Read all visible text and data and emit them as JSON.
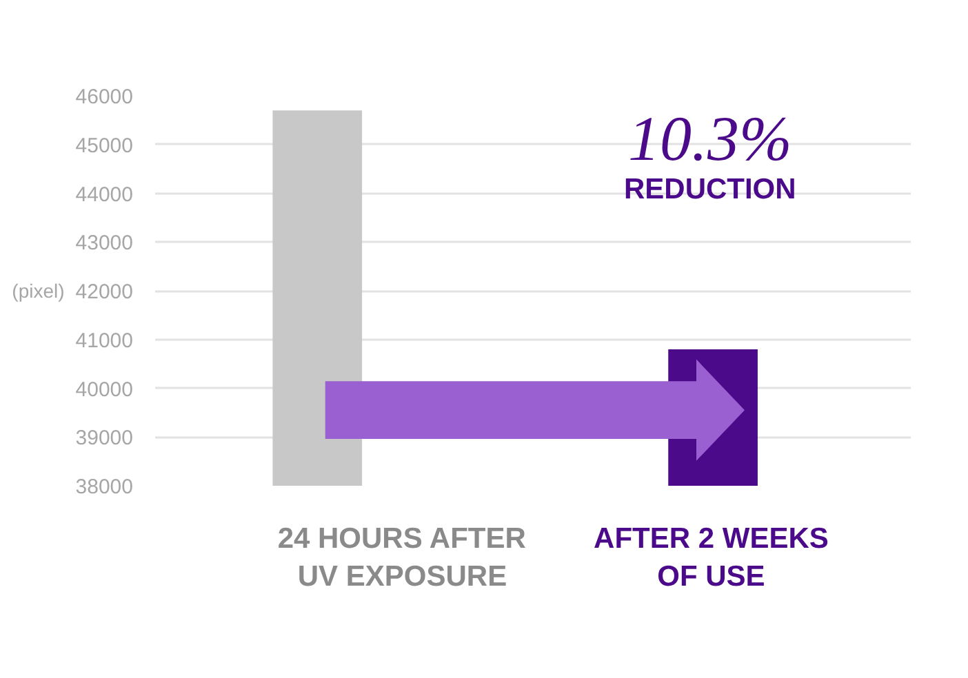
{
  "chart_data": {
    "type": "bar",
    "categories": [
      "24 HOURS AFTER UV EXPOSURE",
      "AFTER 2 WEEKS OF USE"
    ],
    "values": [
      45700,
      40800
    ],
    "colors": [
      "#c8c8c8",
      "#4b0a8a"
    ],
    "ylabel": "(pixel)",
    "ylim": [
      38000,
      46000
    ],
    "yticks": [
      38000,
      39000,
      40000,
      41000,
      42000,
      43000,
      44000,
      45000,
      46000
    ],
    "grid": "y",
    "annotations": [
      "10.3%",
      "REDUCTION"
    ]
  }
}
